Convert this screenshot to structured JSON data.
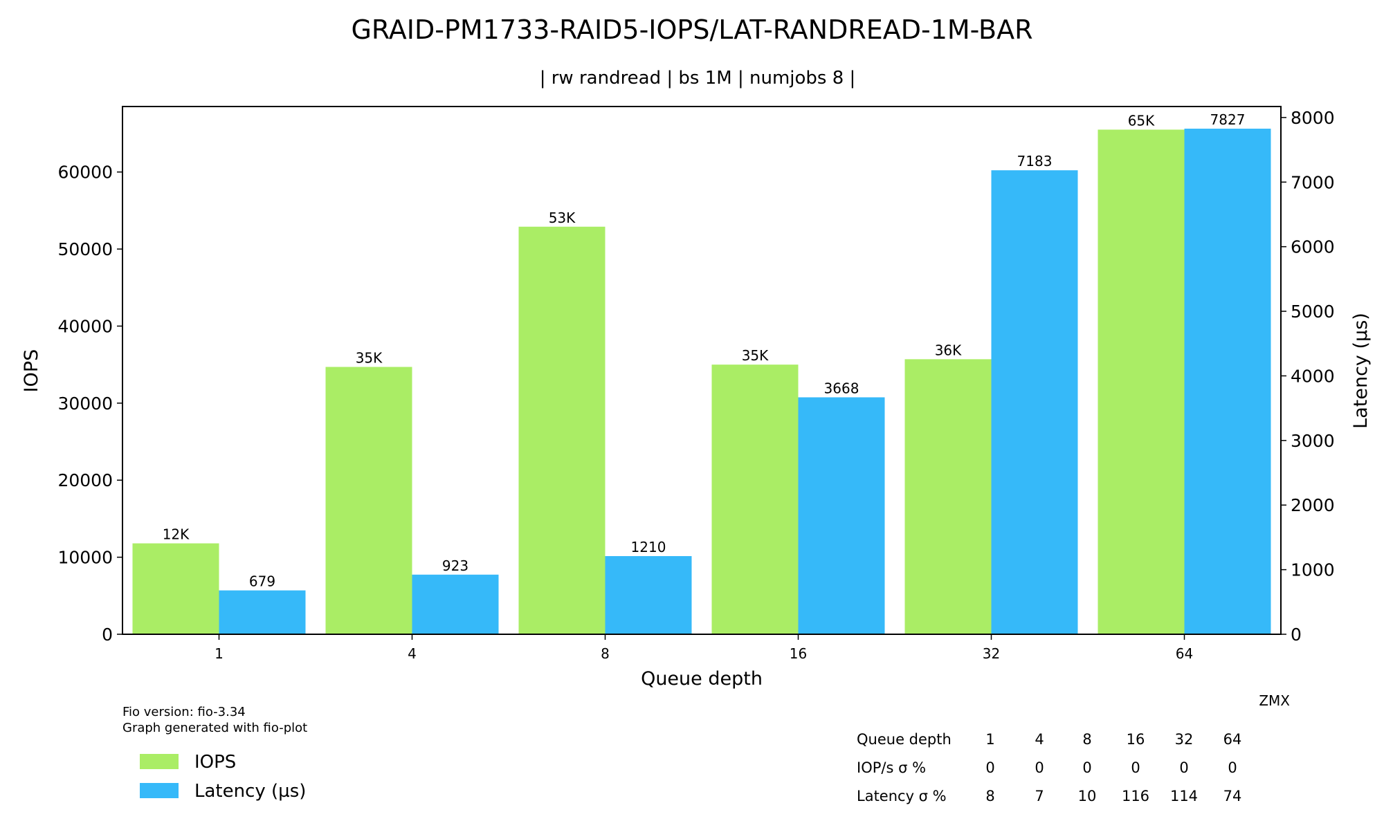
{
  "chart_data": {
    "type": "bar",
    "title": "GRAID-PM1733-RAID5-IOPS/LAT-RANDREAD-1M-BAR",
    "subtitle": "| rw randread | bs 1M | numjobs 8 |",
    "xlabel": "Queue depth",
    "ylabel_left": "IOPS",
    "ylabel_right": "Latency (µs)",
    "categories": [
      "1",
      "4",
      "8",
      "16",
      "32",
      "64"
    ],
    "left_axis": {
      "ylim": [
        0,
        68500
      ],
      "ticks": [
        0,
        10000,
        20000,
        30000,
        40000,
        50000,
        60000
      ]
    },
    "right_axis": {
      "ylim": [
        0,
        8170
      ],
      "ticks": [
        0,
        1000,
        2000,
        3000,
        4000,
        5000,
        6000,
        7000,
        8000
      ]
    },
    "series": [
      {
        "name": "IOPS",
        "axis": "left",
        "color": "#aaed65",
        "values": [
          11800,
          34700,
          52900,
          35000,
          35700,
          65500
        ],
        "labels": [
          "12K",
          "35K",
          "53K",
          "35K",
          "36K",
          "65K"
        ]
      },
      {
        "name": "Latency (µs)",
        "axis": "right",
        "color": "#36b9f9",
        "values": [
          679,
          923,
          1210,
          3668,
          7183,
          7827
        ],
        "labels": [
          "679",
          "923",
          "1210",
          "3668",
          "7183",
          "7827"
        ]
      }
    ],
    "grid": false,
    "legend_placement": "bottom-left"
  },
  "footer": {
    "fio_version": "Fio version: fio-3.34",
    "generator": "Graph generated with fio-plot",
    "signature": "ZMX"
  },
  "stats_table": {
    "rows": [
      {
        "label": "Queue depth",
        "values": [
          "1",
          "4",
          "8",
          "16",
          "32",
          "64"
        ]
      },
      {
        "label": "IOP/s σ %",
        "values": [
          "0",
          "0",
          "0",
          "0",
          "0",
          "0"
        ]
      },
      {
        "label": "Latency σ %",
        "values": [
          "8",
          "7",
          "10",
          "116",
          "114",
          "74"
        ]
      }
    ]
  }
}
